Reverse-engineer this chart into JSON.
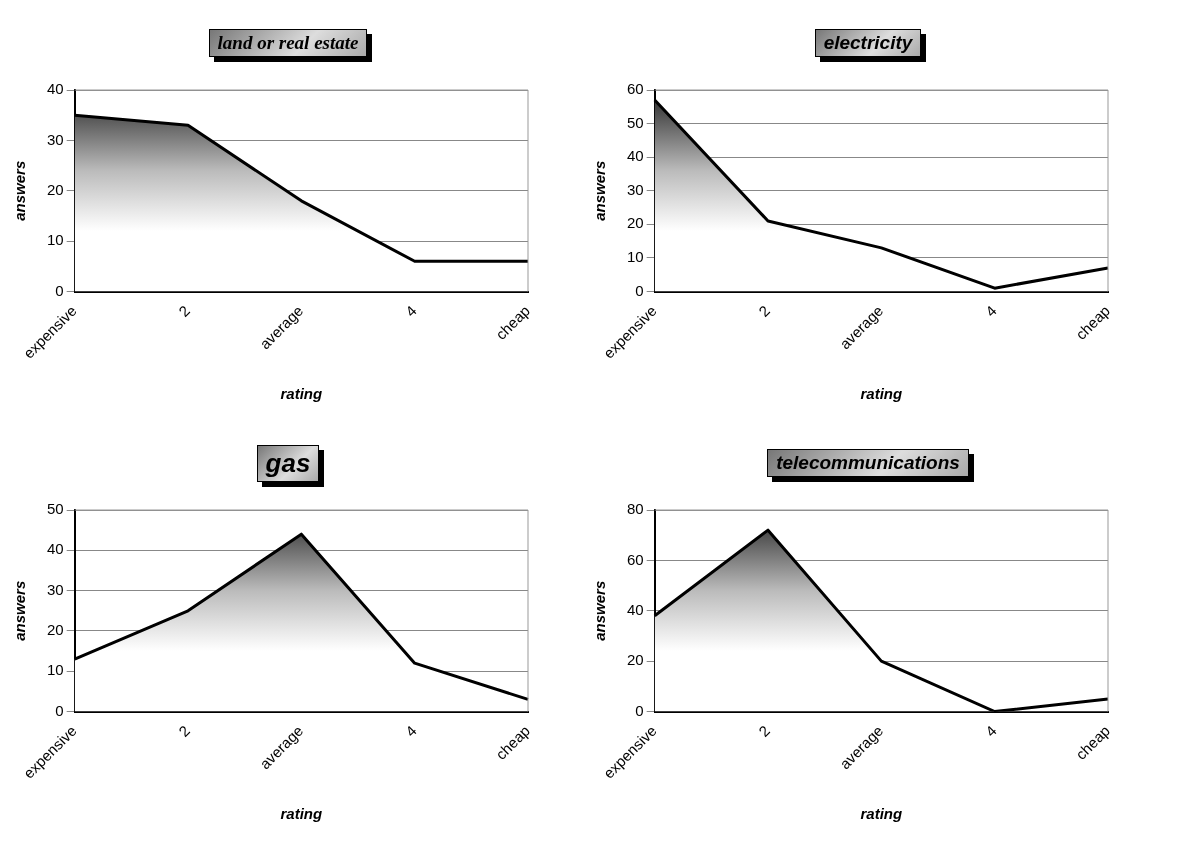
{
  "chart_data": [
    {
      "type": "area",
      "title": "land or real estate",
      "xlabel": "rating",
      "ylabel": "answers",
      "categories": [
        "expensive",
        "2",
        "average",
        "4",
        "cheap"
      ],
      "series": [
        {
          "color": "#000000",
          "values": [
            35,
            33,
            18,
            6,
            6
          ]
        }
      ],
      "ylim": [
        0,
        40
      ],
      "yticks": [
        0,
        10,
        20,
        30,
        40
      ],
      "grid": "y",
      "legend": false
    },
    {
      "type": "area",
      "title": "electricity",
      "xlabel": "rating",
      "ylabel": "answers",
      "categories": [
        "expensive",
        "2",
        "average",
        "4",
        "cheap"
      ],
      "series": [
        {
          "color": "#000000",
          "values": [
            57,
            21,
            13,
            1,
            7
          ]
        }
      ],
      "ylim": [
        0,
        60
      ],
      "yticks": [
        0,
        10,
        20,
        30,
        40,
        50,
        60
      ],
      "grid": "y",
      "legend": false
    },
    {
      "type": "area",
      "title": "gas",
      "xlabel": "rating",
      "ylabel": "answers",
      "categories": [
        "expensive",
        "2",
        "average",
        "4",
        "cheap"
      ],
      "series": [
        {
          "color": "#000000",
          "values": [
            13,
            25,
            44,
            12,
            3
          ]
        }
      ],
      "ylim": [
        0,
        50
      ],
      "yticks": [
        0,
        10,
        20,
        30,
        40,
        50
      ],
      "grid": "y",
      "legend": false
    },
    {
      "type": "area",
      "title": "telecommunications",
      "xlabel": "rating",
      "ylabel": "answers",
      "categories": [
        "expensive",
        "2",
        "average",
        "4",
        "cheap"
      ],
      "series": [
        {
          "color": "#000000",
          "values": [
            38,
            72,
            20,
            0,
            5
          ]
        }
      ],
      "ylim": [
        0,
        80
      ],
      "yticks": [
        0,
        20,
        40,
        60,
        80
      ],
      "grid": "y",
      "legend": false
    }
  ]
}
